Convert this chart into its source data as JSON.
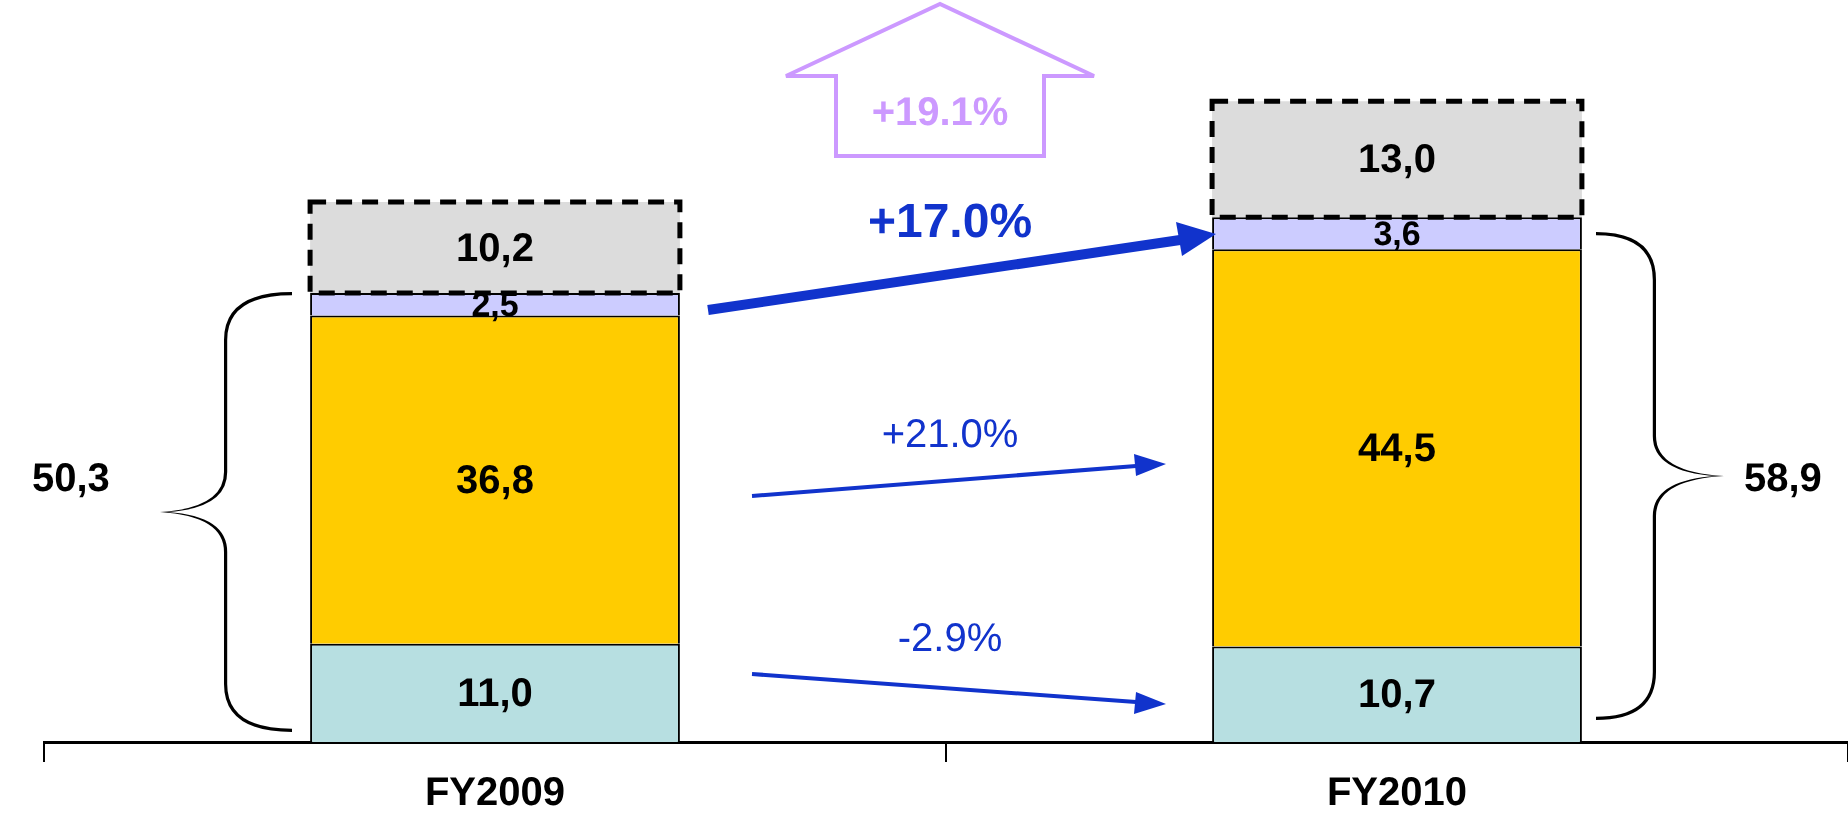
{
  "chart_data": {
    "type": "bar",
    "stacked": true,
    "categories": [
      "FY2009",
      "FY2010"
    ],
    "tick_labels": "x",
    "series": [
      {
        "color": "#b7dfe1",
        "values": [
          11.0,
          10.7
        ],
        "value_labels": [
          "11,0",
          "10,7"
        ]
      },
      {
        "color": "#ffcc00",
        "values": [
          36.8,
          44.5
        ],
        "value_labels": [
          "36,8",
          "44,5"
        ]
      },
      {
        "color": "#ccccff",
        "values": [
          2.5,
          3.6
        ],
        "value_labels": [
          "2,5",
          "3,6"
        ]
      },
      {
        "color": "#dcdcdc",
        "values": [
          10.2,
          13.0
        ],
        "value_labels": [
          "10,2",
          "13,0"
        ],
        "line_style": "dashed"
      }
    ],
    "annotations": [
      "+19.1%",
      "+17.0%",
      "+21.0%",
      "-2.9%",
      "50,3",
      "58,9"
    ]
  }
}
